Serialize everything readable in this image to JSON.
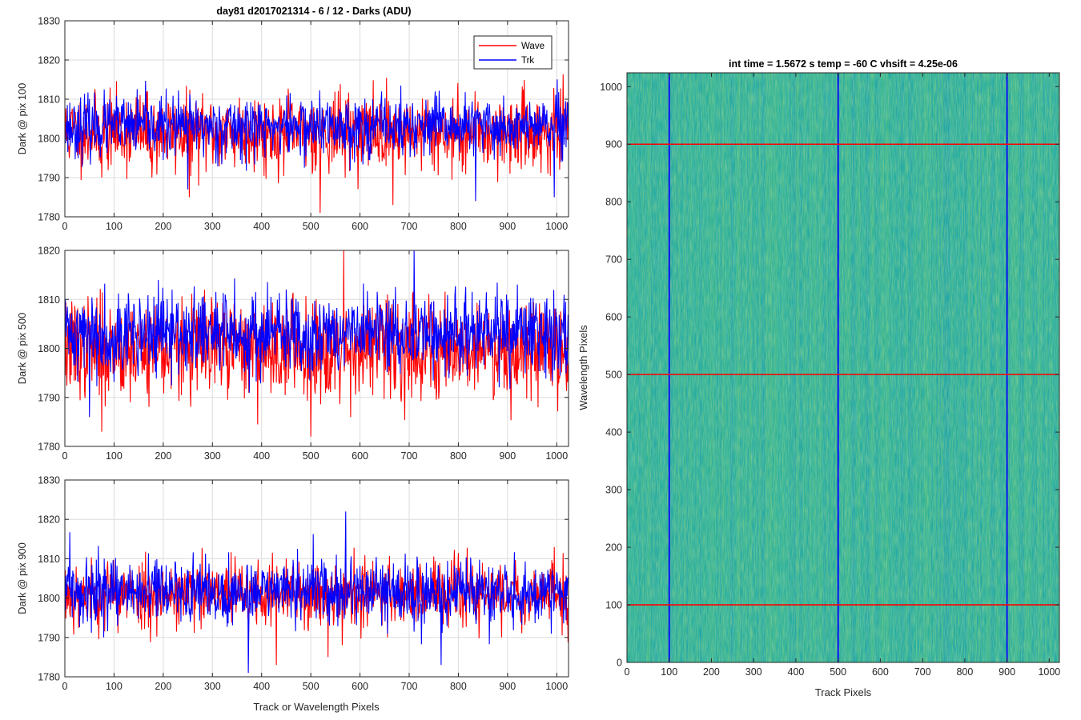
{
  "figure_title": "day81 d2017021314 - 6 / 12 - Darks (ADU)",
  "colors": {
    "wave": "#ff0000",
    "trk": "#0000ff",
    "map_base": "#2bb09c"
  },
  "chart_data": [
    {
      "type": "line",
      "title": "day81 d2017021314 - 6 / 12 - Darks (ADU)",
      "xlabel": "",
      "ylabel": "Dark @ pix 100",
      "xlim": [
        0,
        1024
      ],
      "ylim": [
        1780,
        1830
      ],
      "xticks": [
        "0",
        "100",
        "200",
        "300",
        "400",
        "500",
        "600",
        "700",
        "800",
        "900",
        "1000"
      ],
      "yticks": [
        "1780",
        "1790",
        "1800",
        "1810",
        "1820",
        "1830"
      ],
      "grid": true,
      "legend": {
        "position": "top-right",
        "entries": [
          "Wave",
          "Trk"
        ]
      },
      "series": [
        {
          "name": "Wave",
          "color": "#ff0000",
          "mean": 1801.5,
          "sd": 4.8,
          "seed": 11,
          "peaks": [
            [
              75,
              1790
            ],
            [
              177,
              1790
            ],
            [
              253,
              1785
            ],
            [
              519,
              1781
            ],
            [
              667,
              1783
            ]
          ]
        },
        {
          "name": "Trk",
          "color": "#0000ff",
          "mean": 1803,
          "sd": 3.8,
          "seed": 23,
          "peaks": [
            [
              250,
              1787
            ],
            [
              835,
              1784
            ],
            [
              995,
              1785
            ]
          ]
        }
      ]
    },
    {
      "type": "line",
      "title": "",
      "xlabel": "",
      "ylabel": "Dark @ pix 500",
      "xlim": [
        0,
        1024
      ],
      "ylim": [
        1780,
        1820
      ],
      "xticks": [
        "0",
        "100",
        "200",
        "300",
        "400",
        "500",
        "600",
        "700",
        "800",
        "900",
        "1000"
      ],
      "yticks": [
        "1780",
        "1790",
        "1800",
        "1810",
        "1820"
      ],
      "grid": true,
      "series": [
        {
          "name": "Wave",
          "color": "#ff0000",
          "mean": 1800,
          "sd": 5.0,
          "seed": 37,
          "peaks": [
            [
              75,
              1783
            ],
            [
              500,
              1782
            ],
            [
              567,
              1820
            ]
          ]
        },
        {
          "name": "Trk",
          "color": "#0000ff",
          "mean": 1803,
          "sd": 4.2,
          "seed": 41,
          "peaks": [
            [
              50,
              1786
            ],
            [
              710,
              1820
            ]
          ]
        }
      ]
    },
    {
      "type": "line",
      "title": "",
      "xlabel": "Track or Wavelength Pixels",
      "ylabel": "Dark @ pix 900",
      "xlim": [
        0,
        1024
      ],
      "ylim": [
        1780,
        1830
      ],
      "xticks": [
        "0",
        "100",
        "200",
        "300",
        "400",
        "500",
        "600",
        "700",
        "800",
        "900",
        "1000"
      ],
      "yticks": [
        "1780",
        "1790",
        "1800",
        "1810",
        "1820",
        "1830"
      ],
      "grid": true,
      "series": [
        {
          "name": "Wave",
          "color": "#ff0000",
          "mean": 1801,
          "sd": 4.3,
          "seed": 53,
          "peaks": [
            [
              430,
              1783
            ],
            [
              535,
              1785
            ]
          ]
        },
        {
          "name": "Trk",
          "color": "#0000ff",
          "mean": 1801.5,
          "sd": 4.0,
          "seed": 59,
          "peaks": [
            [
              373,
              1781
            ],
            [
              571,
              1822
            ],
            [
              765,
              1783
            ]
          ]
        }
      ]
    },
    {
      "type": "heatmap",
      "title": "int time = 1.5672 s    temp = -60 C    vhsift = 4.25e-06",
      "xlabel": "Track Pixels",
      "ylabel": "Wavelength Pixels",
      "xlim": [
        0,
        1024
      ],
      "ylim": [
        0,
        1024
      ],
      "xticks": [
        "0",
        "100",
        "200",
        "300",
        "400",
        "500",
        "600",
        "700",
        "800",
        "900",
        "1000"
      ],
      "yticks": [
        "0",
        "100",
        "200",
        "300",
        "400",
        "500",
        "600",
        "700",
        "800",
        "900",
        "1000"
      ],
      "colormap": "parula",
      "vertical_lines": {
        "color": "#0000ff",
        "x": [
          100,
          500,
          900
        ]
      },
      "horizontal_lines": {
        "color": "#ff0000",
        "y": [
          100,
          500,
          900
        ]
      }
    }
  ]
}
